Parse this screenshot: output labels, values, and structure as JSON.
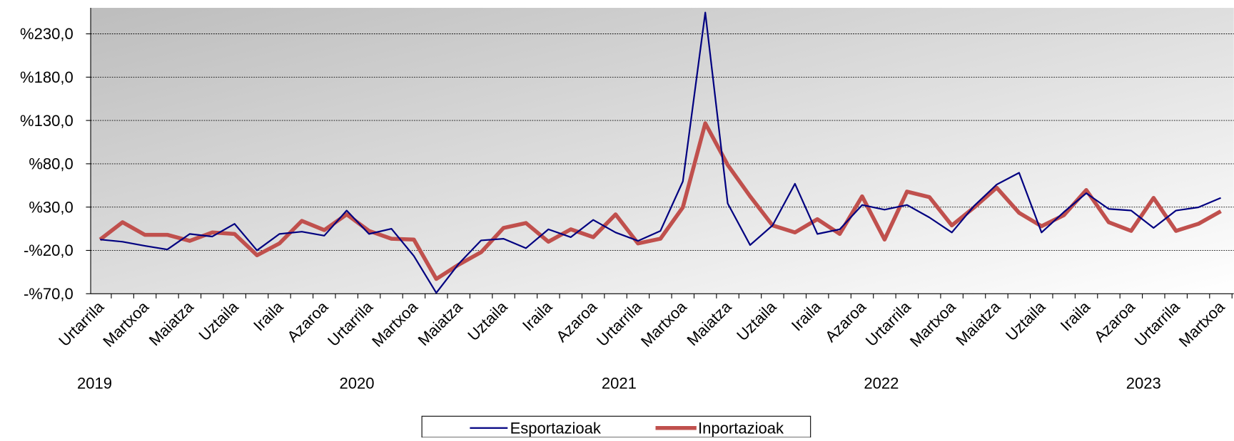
{
  "chart_data": {
    "type": "line",
    "categories": [
      "Urtarrila",
      null,
      "Martxoa",
      null,
      "Maiatza",
      null,
      "Uztaila",
      null,
      "Iraila",
      null,
      "Azaroa",
      null,
      "Urtarrila",
      null,
      "Martxoa",
      null,
      "Maiatza",
      null,
      "Uztaila",
      null,
      "Iraila",
      null,
      "Azaroa",
      null,
      "Urtarrila",
      null,
      "Martxoa",
      null,
      "Maiatza",
      null,
      "Uztaila",
      null,
      "Iraila",
      null,
      "Azaroa",
      null,
      "Urtarrila",
      null,
      "Martxoa",
      null,
      "Maiatza",
      null,
      "Uztaila",
      null,
      "Iraila",
      null,
      "Azaroa",
      null,
      "Urtarrila",
      null,
      "Martxoa"
    ],
    "x_groups": [
      "2019",
      "2020",
      "2021",
      "2022",
      "2023"
    ],
    "series": [
      {
        "name": "Esportazioak",
        "color": "#000080",
        "values": [
          -7.4,
          -10,
          -14.7,
          -19,
          -1,
          -4,
          10.7,
          -20,
          -1,
          1.6,
          -3,
          26,
          -1,
          5,
          -26.5,
          -69,
          -35.5,
          -8.4,
          -6.5,
          -17.4,
          4.3,
          -4.7,
          15.2,
          0.7,
          -9,
          2.5,
          59.6,
          254.6,
          34.3,
          -13.8,
          8.9,
          56.9,
          -1,
          4.3,
          32.4,
          27,
          32.4,
          18,
          0.7,
          31.5,
          56,
          69.6,
          0.7,
          24.3,
          46,
          27.9,
          26,
          6,
          26,
          29.7,
          40.6
        ]
      },
      {
        "name": "Inportazioak",
        "color": "#c0504d",
        "values": [
          -7.4,
          12.5,
          -2,
          -2,
          -9,
          0.7,
          -1,
          -25.6,
          -12,
          14,
          3.4,
          21.6,
          2.5,
          -6.5,
          -7.4,
          -53,
          -36.5,
          -22,
          6,
          11.6,
          -10,
          4.3,
          -4.7,
          21.6,
          -12,
          -6.5,
          29.7,
          126.7,
          78.7,
          42.4,
          8.9,
          0.7,
          16,
          -1,
          42.4,
          -7.4,
          47.9,
          41.5,
          8.9,
          29.7,
          52.4,
          23.4,
          8,
          20.7,
          49.7,
          12.5,
          2.5,
          40.6,
          2.5,
          10.7,
          25.2
        ]
      }
    ],
    "ylim": [
      -70,
      260
    ],
    "yticks": [
      {
        "value": -70,
        "label": "-%70,0"
      },
      {
        "value": -20,
        "label": "-%20,0"
      },
      {
        "value": 30,
        "label": "%30,0"
      },
      {
        "value": 80,
        "label": "%80,0"
      },
      {
        "value": 130,
        "label": "%130,0"
      },
      {
        "value": 180,
        "label": "%180,0"
      },
      {
        "value": 230,
        "label": "%230,0"
      }
    ],
    "grid": true
  }
}
